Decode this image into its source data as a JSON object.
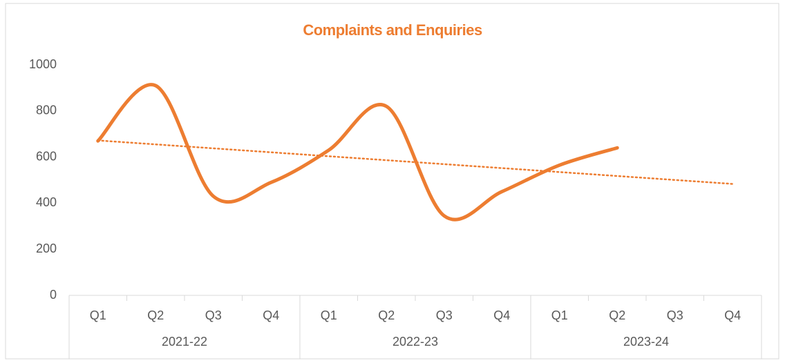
{
  "chart_data": {
    "type": "line",
    "title": "Complaints and Enquiries",
    "categories": [
      "Q1",
      "Q2",
      "Q3",
      "Q4",
      "Q1",
      "Q2",
      "Q3",
      "Q4",
      "Q1",
      "Q2",
      "Q3",
      "Q4"
    ],
    "groups": [
      {
        "name": "2021-22",
        "size": 4
      },
      {
        "name": "2022-23",
        "size": 4
      },
      {
        "name": "2023-24",
        "size": 4
      }
    ],
    "series": [
      {
        "name": "Complaints and Enquiries",
        "color": "#ed7d31",
        "values": [
          670,
          910,
          430,
          490,
          630,
          820,
          345,
          450,
          565,
          640,
          null,
          null
        ]
      }
    ],
    "trendline": "linear",
    "smooth": true,
    "ylim": [
      0,
      1000
    ],
    "yticks": [
      0,
      200,
      400,
      600,
      800,
      1000
    ],
    "grid": false
  }
}
